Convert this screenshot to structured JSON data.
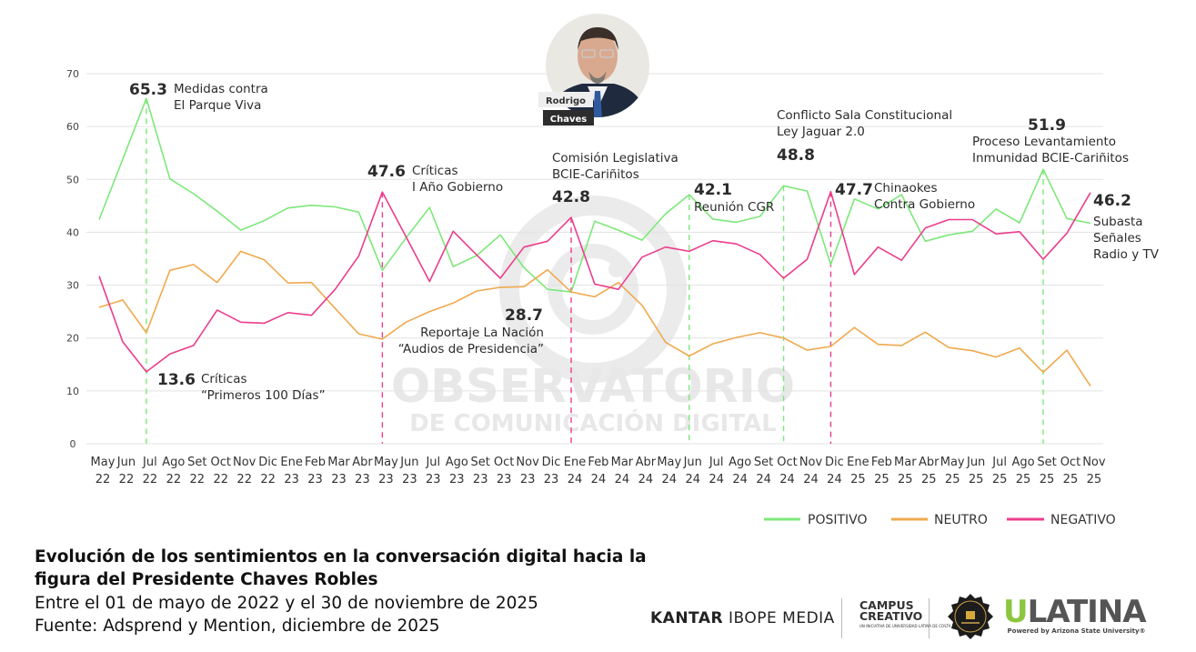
{
  "portrait": {
    "first_name": "Rodrigo",
    "last_name": "Chaves"
  },
  "watermark": {
    "line1": "OBSERVATORIO",
    "line2": "DE COMUNICACIÓN DIGITAL"
  },
  "chart_data": {
    "type": "line",
    "ylim": [
      0,
      70
    ],
    "yticks": [
      "0",
      "10",
      "20",
      "30",
      "40",
      "50",
      "60",
      "70"
    ],
    "grid": true,
    "legend_position": "bottom-right",
    "categories": [
      [
        "May",
        "22"
      ],
      [
        "Jun",
        "22"
      ],
      [
        "Jul",
        "22"
      ],
      [
        "Ago",
        "22"
      ],
      [
        "Set",
        "22"
      ],
      [
        "Oct",
        "22"
      ],
      [
        "Nov",
        "22"
      ],
      [
        "Dic",
        "22"
      ],
      [
        "Ene",
        "23"
      ],
      [
        "Feb",
        "23"
      ],
      [
        "Mar",
        "23"
      ],
      [
        "Abr",
        "23"
      ],
      [
        "May",
        "23"
      ],
      [
        "Jun",
        "23"
      ],
      [
        "Jul",
        "23"
      ],
      [
        "Ago",
        "23"
      ],
      [
        "Set",
        "23"
      ],
      [
        "Oct",
        "23"
      ],
      [
        "Nov",
        "23"
      ],
      [
        "Dic",
        "23"
      ],
      [
        "Ene",
        "24"
      ],
      [
        "Feb",
        "24"
      ],
      [
        "Mar",
        "24"
      ],
      [
        "Abr",
        "24"
      ],
      [
        "May",
        "24"
      ],
      [
        "Jun",
        "24"
      ],
      [
        "Jul",
        "24"
      ],
      [
        "Ago",
        "24"
      ],
      [
        "Set",
        "24"
      ],
      [
        "Oct",
        "24"
      ],
      [
        "Nov",
        "24"
      ],
      [
        "Dic",
        "24"
      ],
      [
        "Ene",
        "25"
      ],
      [
        "Feb",
        "25"
      ],
      [
        "Mar",
        "25"
      ],
      [
        "Abr",
        "25"
      ],
      [
        "May",
        "25"
      ],
      [
        "Jun",
        "25"
      ],
      [
        "Jul",
        "25"
      ],
      [
        "Ago",
        "25"
      ],
      [
        "Set",
        "25"
      ],
      [
        "Oct",
        "25"
      ],
      [
        "Nov",
        "25"
      ]
    ],
    "series": [
      {
        "name": "POSITIVO",
        "color": "#7de87a",
        "values": [
          42.4,
          53.8,
          65.3,
          50.1,
          47.3,
          44.0,
          40.4,
          42.2,
          44.6,
          45.1,
          44.8,
          43.8,
          32.8,
          38.9,
          44.7,
          33.5,
          35.6,
          39.5,
          33.3,
          29.2,
          28.7,
          42.1,
          40.4,
          38.5,
          43.5,
          47.1,
          42.5,
          41.9,
          43.0,
          48.8,
          47.8,
          33.9,
          46.3,
          44.4,
          47.1,
          38.3,
          39.5,
          40.2,
          44.4,
          41.8,
          51.9,
          42.6,
          41.7
        ]
      },
      {
        "name": "NEUTRO",
        "color": "#f0a94e",
        "values": [
          25.8,
          27.2,
          21.0,
          32.8,
          33.9,
          30.5,
          36.4,
          34.8,
          30.4,
          30.5,
          25.6,
          20.8,
          19.8,
          23.0,
          25.0,
          26.6,
          28.9,
          29.6,
          29.7,
          32.9,
          28.7,
          27.8,
          30.5,
          26.2,
          19.2,
          16.6,
          18.9,
          20.1,
          21.0,
          20.0,
          17.7,
          18.4,
          22.0,
          18.8,
          18.6,
          21.1,
          18.2,
          17.6,
          16.4,
          18.1,
          13.5,
          17.7,
          10.9
        ]
      },
      {
        "name": "NEGATIVO",
        "color": "#ec3d8c",
        "values": [
          31.7,
          19.3,
          13.6,
          17.0,
          18.6,
          25.3,
          23.0,
          22.8,
          24.8,
          24.3,
          29.2,
          35.5,
          47.6,
          39.2,
          30.7,
          40.2,
          35.7,
          31.3,
          37.2,
          38.3,
          42.8,
          30.2,
          29.2,
          35.3,
          37.2,
          36.4,
          38.4,
          37.8,
          35.8,
          31.3,
          34.9,
          47.7,
          32.0,
          37.2,
          34.7,
          40.8,
          42.4,
          42.4,
          39.7,
          40.1,
          34.9,
          39.8,
          47.5
        ]
      }
    ],
    "events": [
      {
        "index": 2,
        "series": "POSITIVO",
        "color": "#7de87a"
      },
      {
        "index": 12,
        "series": "NEGATIVO",
        "color": "#ec3d8c"
      },
      {
        "index": 20,
        "series": "NEGATIVO",
        "color": "#ec3d8c"
      },
      {
        "index": 25,
        "series": "POSITIVO",
        "color": "#7de87a"
      },
      {
        "index": 29,
        "series": "POSITIVO",
        "color": "#7de87a"
      },
      {
        "index": 31,
        "series": "NEGATIVO",
        "color": "#ec3d8c"
      },
      {
        "index": 40,
        "series": "POSITIVO",
        "color": "#7de87a"
      }
    ],
    "annotations": [
      {
        "value": "65.3",
        "lines": [
          "Medidas contra",
          "El Parque Viva"
        ]
      },
      {
        "value": "13.6",
        "lines": [
          "Críticas",
          "“Primeros 100 Días”"
        ]
      },
      {
        "value": "47.6",
        "lines": [
          "Críticas",
          "I Año Gobierno"
        ]
      },
      {
        "value": "42.8",
        "lines": [
          "Comisión Legislativa",
          "BCIE-Cariñitos"
        ]
      },
      {
        "value": "28.7",
        "lines": [
          "Reportaje La Nación",
          "“Audios de Presidencia”"
        ]
      },
      {
        "value": "42.1",
        "lines": [
          "Reunión CGR"
        ]
      },
      {
        "value": "48.8",
        "lines": [
          "Conflicto Sala Constitucional",
          "Ley Jaguar 2.0"
        ]
      },
      {
        "value": "47.7",
        "lines": [
          "Chinaokes",
          "Contra Gobierno"
        ]
      },
      {
        "value": "51.9",
        "lines": [
          "Proceso Levantamiento",
          "Inmunidad BCIE-Cariñitos"
        ]
      },
      {
        "value": "46.2",
        "lines": [
          "Subasta",
          "Señales",
          "Radio y TV"
        ]
      }
    ]
  },
  "legend": [
    "POSITIVO",
    "NEUTRO",
    "NEGATIVO"
  ],
  "footer": {
    "title_line1": "Evolución de los sentimientos en la conversación digital hacia la",
    "title_line2": "figura del Presidente Chaves Robles",
    "date_range": "Entre el 01 de mayo de 2022 y el 30 de noviembre de 2025",
    "source": "Fuente: Adsprend y Mention, diciembre de 2025"
  },
  "logos": {
    "kantar_bold": "KANTAR",
    "kantar_rest": "IBOPE MEDIA",
    "campus_line1": "CAMPUS",
    "campus_line2": "CREATIVO",
    "campus_tagline": "UN INICIATIVA DE UNIVERSIDAD LATINA DE COSTA RICA",
    "ulatina_u": "U",
    "ulatina_rest": "LATINA",
    "ulatina_tagline": "Powered by Arizona State University®"
  }
}
